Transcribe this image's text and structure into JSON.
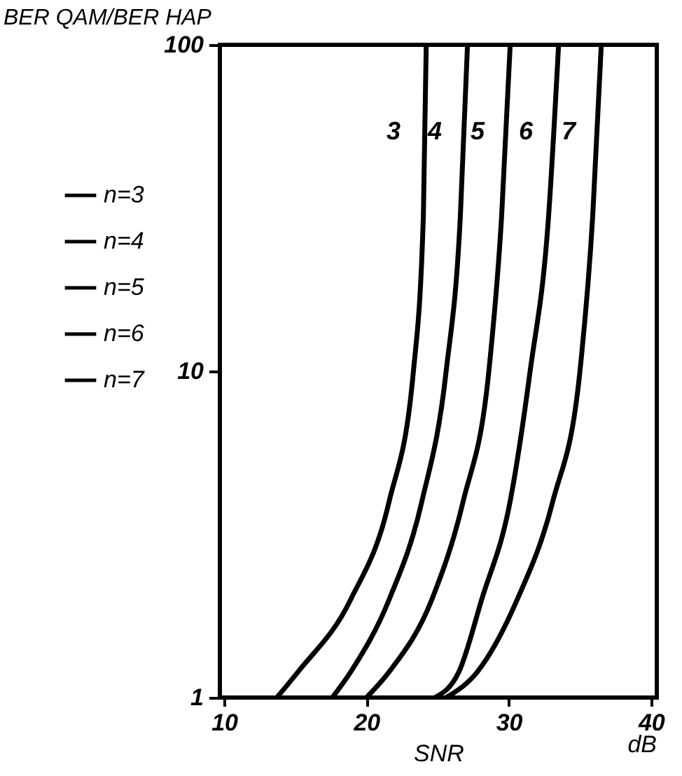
{
  "chart_data": {
    "type": "line",
    "xlabel": "SNR",
    "ylabel": "BER QAM/BER HAP",
    "log": "y",
    "legend": "left",
    "line_style": "solid",
    "marker": "none",
    "grid": false,
    "xlim": [
      9.7,
      40.4
    ],
    "xticks": [
      10,
      20,
      30,
      40
    ],
    "ylim": [
      1,
      100
    ],
    "yticks": [
      1,
      10,
      100
    ],
    "series": [
      {
        "name": "n=3",
        "color": "#000000",
        "x": [
          13.7,
          15.2,
          18.9,
          21.6,
          23.3,
          24.0,
          24.2
        ],
        "values": [
          1,
          1.2,
          2,
          4,
          10,
          30,
          100
        ]
      },
      {
        "name": "n=4",
        "color": "#000000",
        "x": [
          17.6,
          18.9,
          21.6,
          23.9,
          25.6,
          26.6,
          27.1
        ],
        "values": [
          1,
          1.2,
          2,
          4,
          10,
          30,
          100
        ]
      },
      {
        "name": "n=5",
        "color": "#000000",
        "x": [
          20.0,
          21.6,
          24.6,
          26.8,
          28.6,
          29.5,
          30.1
        ],
        "values": [
          1,
          1.2,
          2,
          4,
          10,
          30,
          100
        ]
      },
      {
        "name": "n=6",
        "color": "#000000",
        "x": [
          24.8,
          26.5,
          28.1,
          30.1,
          31.5,
          32.8,
          33.5
        ],
        "values": [
          1,
          1.2,
          2,
          4,
          10,
          30,
          100
        ]
      },
      {
        "name": "n=7",
        "color": "#000000",
        "x": [
          25.6,
          27.8,
          30.6,
          33.1,
          35.0,
          35.9,
          36.5
        ],
        "values": [
          1,
          1.2,
          2,
          4,
          10,
          30,
          100
        ]
      }
    ],
    "annotations": [
      "3",
      "4",
      "5",
      "6",
      "7",
      "dB"
    ]
  }
}
